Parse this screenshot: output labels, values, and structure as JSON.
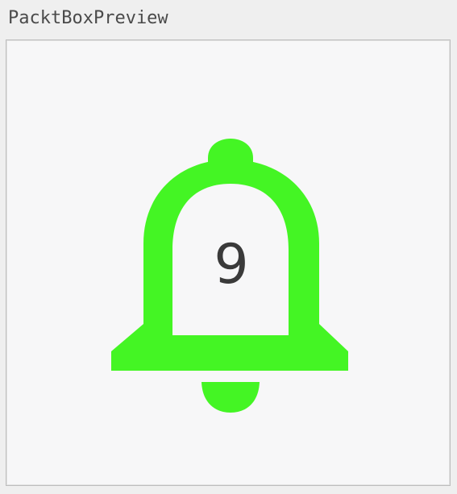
{
  "window": {
    "title": "PacktBoxPreview"
  },
  "preview": {
    "notification_count": "9",
    "bell_color": "#44f524",
    "count_color": "#3a3a3a",
    "background_color": "#f7f7f8"
  }
}
